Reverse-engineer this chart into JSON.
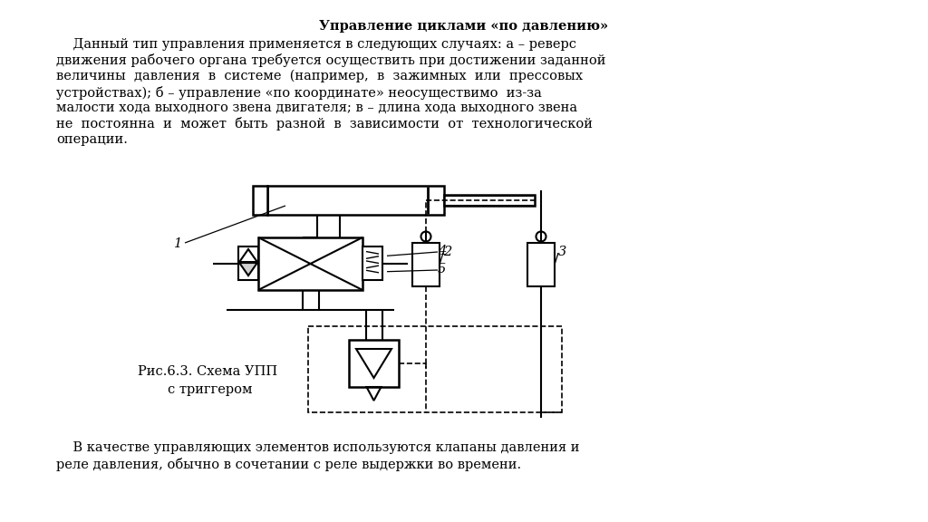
{
  "title": "Управление циклами «по давлению»",
  "fig_caption1": "Рис.6.3. Схема УПП",
  "fig_caption2": "с триггером",
  "para1_lines": [
    "    Данный тип управления применяется в следующих случаях: а – реверс",
    "движения рабочего органа требуется осуществить при достижении заданной",
    "величины  давления  в  системе  (например,  в  зажимных  или  прессовых",
    "устройствах); б – управление «по координате» неосуществимо  из-за",
    "малости хода выходного звена двигателя; в – длина хода выходного звена",
    "не  постоянна  и  может  быть  разной  в  зависимости  от  технологической",
    "операции."
  ],
  "para2_lines": [
    "    В качестве управляющих элементов используются клапаны давления и",
    "реле давления, обычно в сочетании с реле выдержки во времени."
  ]
}
